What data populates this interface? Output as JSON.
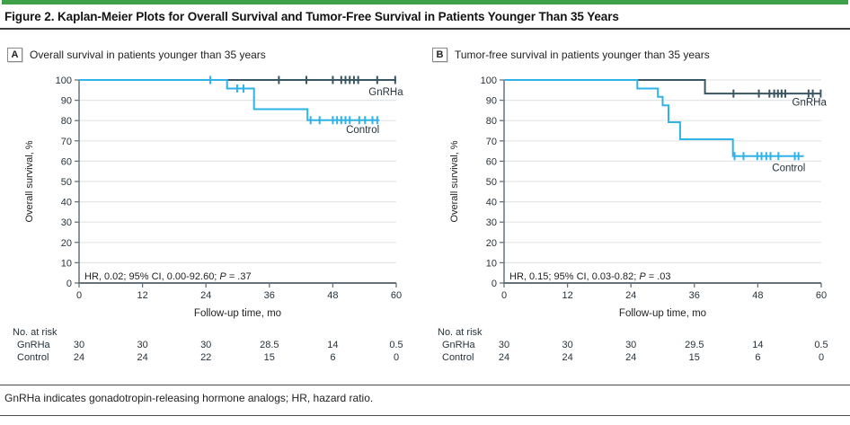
{
  "figure": {
    "title": "Figure 2. Kaplan-Meier Plots for Overall Survival and Tumor-Free Survival in Patients Younger Than 35 Years",
    "footnote": "GnRHa indicates gonadotropin-releasing hormone analogs; HR, hazard ratio."
  },
  "colors": {
    "accent_green": "#3FA24B",
    "gnrha": "#3A5663",
    "control": "#2FB3E8",
    "grid": "#E3E6E8",
    "axis": "#68727A",
    "text": "#27323B",
    "label_text": "#1f1f1f"
  },
  "chart_data": [
    {
      "type": "line",
      "panel": "A",
      "title": "Overall survival in patients younger than 35 years",
      "xlabel": "Follow-up time, mo",
      "ylabel": "Overall survival, %",
      "xlim": [
        0,
        60
      ],
      "ylim": [
        0,
        100
      ],
      "xticks": [
        0,
        12,
        24,
        36,
        48,
        60
      ],
      "yticks": [
        0,
        10,
        20,
        30,
        40,
        50,
        60,
        70,
        80,
        90,
        100
      ],
      "grid": "horizontal",
      "annotation": {
        "pre": "HR, 0.02; 95% CI, 0.00-92.60;",
        "italic": "P",
        "post": "= .37"
      },
      "series": [
        {
          "name": "GnRHa",
          "color": "#3A5663",
          "steps": [
            [
              0,
              100
            ],
            [
              60,
              100
            ]
          ],
          "censors": [
            [
              37.8,
              100
            ],
            [
              43,
              100
            ],
            [
              48,
              100
            ],
            [
              49.6,
              100
            ],
            [
              50.4,
              100
            ],
            [
              51.2,
              100
            ],
            [
              52,
              100
            ],
            [
              52.8,
              100
            ],
            [
              56.4,
              100
            ],
            [
              59.8,
              100
            ]
          ],
          "label": {
            "x": 61.3,
            "y": 92.5
          }
        },
        {
          "name": "Control",
          "color": "#2FB3E8",
          "steps": [
            [
              0,
              100
            ],
            [
              28,
              100
            ],
            [
              28,
              95.8
            ],
            [
              33.1,
              95.8
            ],
            [
              33.1,
              85.6
            ],
            [
              43.2,
              85.6
            ],
            [
              43.2,
              80.2
            ],
            [
              56.8,
              80.2
            ]
          ],
          "censors": [
            [
              24.8,
              100
            ],
            [
              29.9,
              95.8
            ],
            [
              31.1,
              95.8
            ],
            [
              43.8,
              80.2
            ],
            [
              45.5,
              80.2
            ],
            [
              48,
              80.2
            ],
            [
              48.8,
              80.2
            ],
            [
              49.6,
              80.2
            ],
            [
              50.4,
              80.2
            ],
            [
              51.2,
              80.2
            ],
            [
              53,
              80.2
            ],
            [
              54.1,
              80.2
            ],
            [
              55.5,
              80.2
            ],
            [
              56.4,
              80.2
            ]
          ],
          "label": {
            "x": 56.8,
            "y": 74
          }
        }
      ],
      "risk_table": {
        "header": "No. at risk",
        "rows": [
          {
            "name": "GnRHa",
            "values": [
              "30",
              "30",
              "30",
              "28.5",
              "14",
              "0.5"
            ]
          },
          {
            "name": "Control",
            "values": [
              "24",
              "24",
              "22",
              "15",
              "6",
              "0"
            ]
          }
        ]
      }
    },
    {
      "type": "line",
      "panel": "B",
      "title": "Tumor-free survival in patients younger than 35 years",
      "xlabel": "Follow-up time, mo",
      "ylabel": "Overall survival, %",
      "xlim": [
        0,
        60
      ],
      "ylim": [
        0,
        100
      ],
      "xticks": [
        0,
        12,
        24,
        36,
        48,
        60
      ],
      "yticks": [
        0,
        10,
        20,
        30,
        40,
        50,
        60,
        70,
        80,
        90,
        100
      ],
      "grid": "horizontal",
      "annotation": {
        "pre": "HR, 0.15; 95% CI, 0.03-0.82;",
        "italic": "P",
        "post": "= .03"
      },
      "series": [
        {
          "name": "GnRHa",
          "color": "#3A5663",
          "steps": [
            [
              0,
              100
            ],
            [
              38,
              100
            ],
            [
              38,
              93.3
            ],
            [
              60,
              93.3
            ]
          ],
          "censors": [
            [
              43.4,
              93.3
            ],
            [
              48.2,
              93.3
            ],
            [
              50.2,
              93.3
            ],
            [
              51.1,
              93.3
            ],
            [
              51.8,
              93.3
            ],
            [
              52.5,
              93.3
            ],
            [
              53.2,
              93.3
            ],
            [
              57.6,
              93.3
            ],
            [
              58.4,
              93.3
            ],
            [
              59.9,
              93.3
            ]
          ],
          "label": {
            "x": 61,
            "y": 87.5
          }
        },
        {
          "name": "Control",
          "color": "#2FB3E8",
          "steps": [
            [
              0,
              100
            ],
            [
              25.2,
              100
            ],
            [
              25.2,
              95.8
            ],
            [
              29.1,
              95.8
            ],
            [
              29.1,
              91.7
            ],
            [
              30,
              91.7
            ],
            [
              30,
              87.5
            ],
            [
              31.1,
              87.5
            ],
            [
              31.1,
              79.2
            ],
            [
              33.3,
              79.2
            ],
            [
              33.3,
              70.8
            ],
            [
              43.3,
              70.8
            ],
            [
              43.3,
              62.5
            ],
            [
              56.7,
              62.5
            ]
          ],
          "censors": [
            [
              43.6,
              62.5
            ],
            [
              45.3,
              62.5
            ],
            [
              47.9,
              62.5
            ],
            [
              48.7,
              62.5
            ],
            [
              49.6,
              62.5
            ],
            [
              50.4,
              62.5
            ],
            [
              51.9,
              62.5
            ],
            [
              55,
              62.5
            ],
            [
              55.7,
              62.5
            ]
          ],
          "label": {
            "x": 57,
            "y": 55
          }
        }
      ],
      "risk_table": {
        "header": "No. at risk",
        "rows": [
          {
            "name": "GnRHa",
            "values": [
              "30",
              "30",
              "30",
              "29.5",
              "14",
              "0.5"
            ]
          },
          {
            "name": "Control",
            "values": [
              "24",
              "24",
              "24",
              "15",
              "6",
              "0"
            ]
          }
        ]
      }
    }
  ]
}
